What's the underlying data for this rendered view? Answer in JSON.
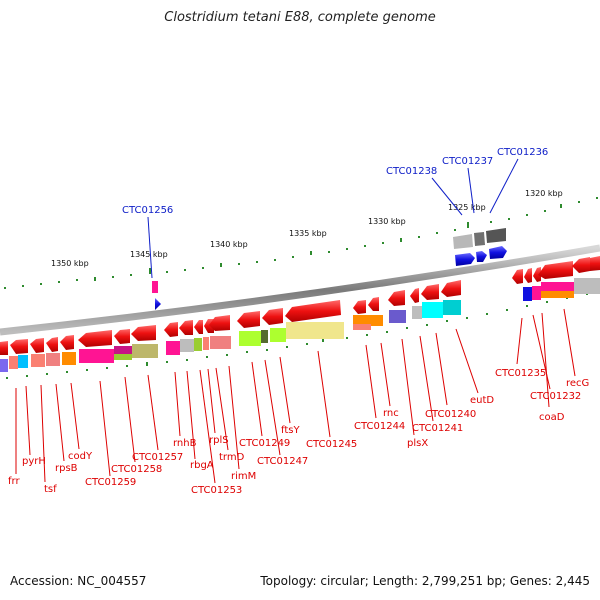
{
  "title": "Clostridium tetani E88, complete genome",
  "footer": {
    "accession": "Accession: NC_004557",
    "topology": "Topology: circular; Length: 2,799,251 bp; Genes: 2,445"
  },
  "colors": {
    "background": "#ffffff",
    "backbone": "#8a8a8a",
    "tick": "#2e8b2e",
    "gene_forward": "#ee1111",
    "gene_reverse": "#1010e0",
    "label_red": "#dd0000",
    "label_blue": "#1020c8"
  },
  "axis_labels": [
    "1350 kbp",
    "1345 kbp",
    "1340 kbp",
    "1335 kbp",
    "1330 kbp",
    "1325 kbp",
    "1320 kbp"
  ],
  "gene_labels_bottom": [
    "frr",
    "pyrH",
    "tsf",
    "rpsB",
    "codY",
    "CTC01259",
    "CTC01258",
    "CTC01257",
    "rnhB",
    "rbgA",
    "CTC01253",
    "rplS",
    "trmD",
    "rimM",
    "CTC01249",
    "CTC01247",
    "ftsY",
    "CTC01245",
    "CTC01244",
    "rnc",
    "plsX",
    "CTC01241",
    "CTC01240",
    "eutD",
    "CTC01235",
    "CTC01232",
    "coaD",
    "recG"
  ],
  "gene_labels_top": [
    "CTC01256",
    "CTC01238",
    "CTC01237",
    "CTC01236"
  ]
}
